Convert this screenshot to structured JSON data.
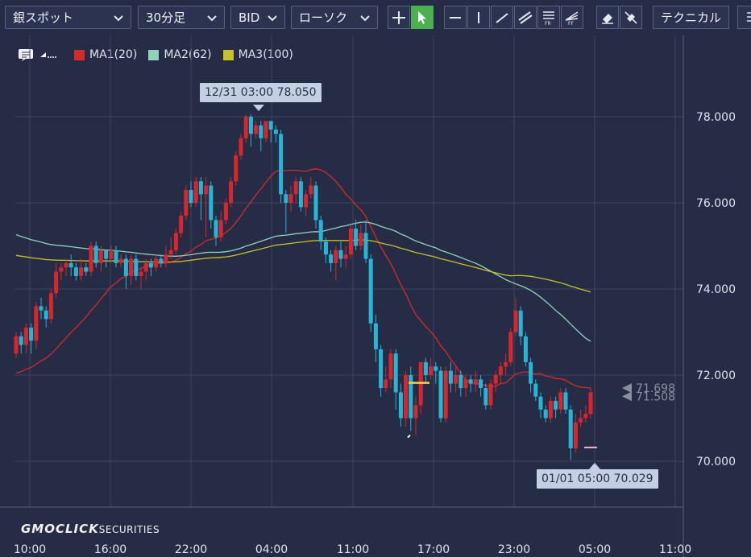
{
  "toolbar": {
    "symbol": "銀スポット",
    "timeframe": "30分足",
    "price_type": "BID",
    "chart_type": "ローソク",
    "technical": "テクニカル",
    "tools": [
      "crosshair-icon",
      "pointer-icon",
      "horizontal-line-icon",
      "vertical-line-icon",
      "trend-line-icon",
      "channel-icon",
      "fibonacci-retracement-icon",
      "fibonacci-fan-icon",
      "eraser-icon",
      "clear-all-icon"
    ]
  },
  "legend": {
    "items": [
      {
        "label": "MA1(20)",
        "color": "#d42a2a"
      },
      {
        "label": "MA2(62)",
        "color": "#8fd3b8"
      },
      {
        "label": "MA3(100)",
        "color": "#c7c12a"
      }
    ]
  },
  "tooltips": {
    "high": "12/31 03:00 78.050",
    "low": "01/01 05:00 70.029"
  },
  "branding": {
    "logo_main": "GMOCLICK",
    "logo_sub": "SECURITIES"
  },
  "colors": {
    "up": "#d8262c",
    "down": "#27b5d6",
    "grid": "#3c4362"
  },
  "chart_data": {
    "type": "candlestick",
    "y_ticks": [
      "78.000",
      "76.000",
      "74.000",
      "72.000",
      "70.000"
    ],
    "x_ticks": [
      "10:00",
      "16:00",
      "22:00",
      "04:00",
      "11:00",
      "17:00",
      "23:00",
      "05:00",
      "11:00"
    ],
    "ylim": [
      68.8,
      79.0
    ],
    "price_labels": [
      {
        "text": "71.698",
        "value": 71.698
      },
      {
        "text": "71.508",
        "value": 71.508
      }
    ],
    "candles": [
      [
        72.5,
        72.9,
        73.0,
        72.4
      ],
      [
        72.9,
        72.7,
        73.0,
        72.5
      ],
      [
        72.7,
        73.1,
        73.2,
        72.5
      ],
      [
        73.1,
        72.8,
        73.2,
        72.5
      ],
      [
        72.8,
        73.6,
        73.7,
        72.6
      ],
      [
        73.6,
        73.5,
        73.8,
        73.3
      ],
      [
        73.5,
        73.3,
        73.6,
        73.1
      ],
      [
        73.3,
        73.9,
        74.0,
        73.2
      ],
      [
        73.9,
        74.4,
        74.6,
        73.8
      ],
      [
        74.4,
        74.5,
        74.6,
        74.2
      ],
      [
        74.5,
        74.6,
        74.7,
        74.3
      ],
      [
        74.6,
        74.5,
        74.8,
        74.3
      ],
      [
        74.5,
        74.3,
        74.6,
        74.2
      ],
      [
        74.3,
        74.5,
        74.7,
        74.2
      ],
      [
        74.5,
        74.4,
        74.6,
        74.3
      ],
      [
        74.4,
        75.0,
        75.1,
        74.3
      ],
      [
        75.0,
        74.6,
        75.1,
        74.5
      ],
      [
        74.6,
        74.9,
        75.0,
        74.4
      ],
      [
        74.9,
        74.7,
        74.9,
        74.5
      ],
      [
        74.7,
        74.9,
        75.0,
        74.6
      ],
      [
        74.9,
        74.6,
        75.0,
        74.5
      ],
      [
        74.6,
        74.7,
        74.8,
        74.5
      ],
      [
        74.7,
        74.3,
        74.8,
        74.0
      ],
      [
        74.3,
        74.7,
        74.8,
        74.1
      ],
      [
        74.7,
        74.3,
        74.8,
        74.2
      ],
      [
        74.3,
        74.4,
        74.5,
        74.0
      ],
      [
        74.4,
        74.6,
        74.7,
        74.2
      ],
      [
        74.6,
        74.5,
        74.7,
        74.3
      ],
      [
        74.5,
        74.7,
        74.8,
        74.4
      ],
      [
        74.7,
        74.6,
        74.8,
        74.5
      ],
      [
        74.6,
        74.8,
        75.0,
        74.5
      ],
      [
        74.8,
        74.9,
        75.2,
        74.7
      ],
      [
        74.9,
        75.3,
        75.4,
        74.8
      ],
      [
        75.3,
        75.7,
        75.8,
        75.2
      ],
      [
        75.7,
        76.3,
        76.4,
        75.6
      ],
      [
        76.3,
        76.0,
        76.5,
        75.9
      ],
      [
        76.0,
        76.5,
        76.6,
        75.9
      ],
      [
        76.5,
        76.2,
        76.6,
        75.6
      ],
      [
        76.2,
        76.4,
        76.6,
        75.2
      ],
      [
        76.4,
        75.6,
        76.5,
        75.4
      ],
      [
        75.6,
        75.2,
        75.7,
        75.0
      ],
      [
        75.2,
        75.6,
        75.8,
        75.1
      ],
      [
        75.6,
        76.0,
        76.1,
        75.5
      ],
      [
        76.0,
        76.5,
        76.6,
        75.9
      ],
      [
        76.5,
        77.1,
        77.2,
        76.4
      ],
      [
        77.1,
        77.5,
        77.6,
        77.0
      ],
      [
        77.5,
        78.0,
        78.05,
        77.4
      ],
      [
        78.0,
        77.6,
        78.05,
        77.3
      ],
      [
        77.6,
        77.8,
        77.9,
        77.5
      ],
      [
        77.8,
        77.5,
        77.9,
        77.2
      ],
      [
        77.5,
        77.9,
        77.9,
        77.4
      ],
      [
        77.9,
        77.7,
        77.9,
        77.4
      ],
      [
        77.7,
        77.6,
        77.8,
        77.4
      ],
      [
        77.6,
        76.2,
        77.7,
        76.0
      ],
      [
        76.2,
        76.0,
        76.3,
        75.3
      ],
      [
        76.0,
        76.2,
        76.4,
        75.8
      ],
      [
        76.2,
        76.5,
        76.6,
        76.0
      ],
      [
        76.5,
        75.9,
        76.6,
        75.8
      ],
      [
        75.9,
        76.2,
        76.3,
        75.7
      ],
      [
        76.2,
        76.4,
        76.6,
        76.1
      ],
      [
        76.4,
        75.6,
        76.5,
        75.4
      ],
      [
        75.6,
        75.1,
        75.7,
        74.9
      ],
      [
        75.1,
        74.8,
        75.2,
        74.6
      ],
      [
        74.8,
        74.6,
        74.9,
        74.4
      ],
      [
        74.6,
        74.9,
        75.0,
        74.2
      ],
      [
        74.9,
        74.7,
        75.1,
        74.5
      ],
      [
        74.7,
        74.8,
        75.0,
        74.5
      ],
      [
        74.8,
        75.4,
        75.5,
        74.7
      ],
      [
        75.4,
        75.0,
        75.6,
        74.9
      ],
      [
        75.0,
        75.3,
        75.5,
        74.9
      ],
      [
        75.3,
        74.7,
        75.6,
        74.6
      ],
      [
        74.7,
        73.2,
        74.8,
        73.0
      ],
      [
        73.2,
        72.6,
        73.4,
        72.3
      ],
      [
        72.6,
        71.7,
        72.7,
        71.5
      ],
      [
        71.7,
        71.9,
        72.2,
        71.6
      ],
      [
        71.9,
        72.5,
        72.6,
        71.7
      ],
      [
        72.5,
        71.6,
        72.6,
        71.2
      ],
      [
        71.6,
        71.0,
        71.8,
        70.8
      ],
      [
        71.0,
        72.0,
        72.1,
        70.8
      ],
      [
        72.0,
        71.0,
        72.2,
        70.7
      ],
      [
        71.0,
        71.3,
        71.5,
        70.6
      ],
      [
        71.3,
        72.3,
        72.3,
        71.1
      ],
      [
        72.3,
        72.0,
        72.4,
        71.8
      ],
      [
        72.0,
        72.2,
        72.4,
        71.9
      ],
      [
        72.2,
        72.1,
        72.3,
        71.8
      ],
      [
        72.1,
        71.0,
        72.2,
        70.9
      ],
      [
        71.0,
        72.1,
        72.2,
        70.9
      ],
      [
        72.1,
        71.8,
        72.3,
        71.6
      ],
      [
        71.8,
        72.0,
        72.2,
        71.6
      ],
      [
        72.0,
        71.7,
        72.1,
        71.5
      ],
      [
        71.7,
        71.9,
        72.0,
        71.5
      ],
      [
        71.9,
        71.8,
        72.0,
        71.6
      ],
      [
        71.8,
        71.9,
        72.1,
        71.6
      ],
      [
        71.9,
        71.7,
        72.0,
        71.5
      ],
      [
        71.7,
        71.3,
        71.8,
        71.2
      ],
      [
        71.3,
        71.8,
        71.9,
        71.2
      ],
      [
        71.8,
        72.0,
        72.1,
        71.6
      ],
      [
        72.0,
        72.2,
        72.3,
        71.8
      ],
      [
        72.2,
        72.3,
        72.5,
        72.0
      ],
      [
        72.3,
        73.0,
        73.1,
        72.2
      ],
      [
        73.0,
        73.5,
        73.8,
        72.9
      ],
      [
        73.5,
        72.9,
        73.6,
        72.7
      ],
      [
        72.9,
        72.3,
        73.0,
        72.2
      ],
      [
        72.3,
        71.8,
        72.4,
        71.6
      ],
      [
        71.8,
        71.5,
        71.9,
        71.4
      ],
      [
        71.5,
        71.2,
        71.6,
        71.0
      ],
      [
        71.2,
        71.0,
        71.3,
        70.9
      ],
      [
        71.0,
        71.4,
        71.5,
        70.9
      ],
      [
        71.4,
        71.2,
        71.5,
        71.0
      ],
      [
        71.2,
        71.6,
        71.7,
        71.1
      ],
      [
        71.6,
        71.2,
        71.7,
        71.1
      ],
      [
        71.2,
        70.3,
        71.3,
        70.029
      ],
      [
        70.3,
        70.9,
        71.1,
        70.2
      ],
      [
        70.9,
        71.0,
        71.2,
        70.8
      ],
      [
        71.0,
        71.1,
        71.3,
        70.9
      ],
      [
        71.1,
        71.6,
        71.7,
        71.0
      ]
    ]
  }
}
